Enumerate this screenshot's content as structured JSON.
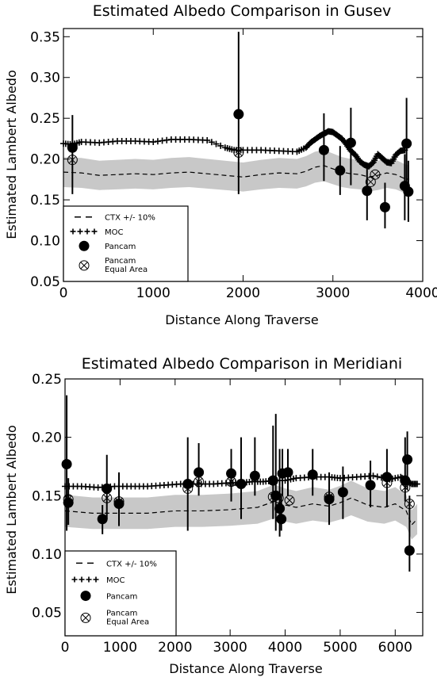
{
  "chart_data": [
    {
      "type": "scatter",
      "title": "Estimated Albedo Comparison in Gusev",
      "xlabel": "Distance Along Traverse",
      "ylabel": "Estimated Lambert Albedo",
      "xlim": [
        0,
        4000
      ],
      "ylim": [
        0.05,
        0.36
      ],
      "xticks": [
        "0",
        "1000",
        "2000",
        "3000",
        "4000"
      ],
      "yticks": [
        "0.05",
        "0.10",
        "0.15",
        "0.20",
        "0.25",
        "0.30",
        "0.35"
      ],
      "legend_position": "bottom-left",
      "legend": {
        "ctx": "CTX +/- 10%",
        "moc": "MOC",
        "pancam": "Pancam",
        "equal1": "Pancam",
        "equal2": "Equal Area"
      },
      "series": [
        {
          "name": "CTX +/- 10%",
          "style": "dashed-with-gray-band",
          "x": [
            0,
            200,
            400,
            600,
            800,
            1000,
            1200,
            1400,
            1600,
            1800,
            2000,
            2200,
            2400,
            2600,
            2700,
            2800,
            2900,
            3000,
            3100,
            3200,
            3300,
            3400,
            3500,
            3600,
            3700,
            3800,
            3850
          ],
          "y": [
            0.184,
            0.183,
            0.18,
            0.181,
            0.182,
            0.181,
            0.183,
            0.184,
            0.182,
            0.18,
            0.178,
            0.181,
            0.183,
            0.182,
            0.185,
            0.19,
            0.192,
            0.188,
            0.184,
            0.182,
            0.181,
            0.178,
            0.18,
            0.183,
            0.181,
            0.176,
            0.175
          ]
        },
        {
          "name": "MOC",
          "style": "plus",
          "x": [
            0,
            100,
            200,
            400,
            600,
            800,
            1000,
            1200,
            1400,
            1600,
            1800,
            1900,
            2000,
            2200,
            2400,
            2600,
            2700,
            2750,
            2800,
            2850,
            2900,
            2950,
            3000,
            3050,
            3100,
            3150,
            3200,
            3250,
            3300,
            3350,
            3400,
            3450,
            3500,
            3550,
            3600,
            3650,
            3700,
            3750,
            3800
          ],
          "y": [
            0.219,
            0.218,
            0.221,
            0.22,
            0.222,
            0.222,
            0.221,
            0.224,
            0.224,
            0.223,
            0.214,
            0.211,
            0.211,
            0.211,
            0.21,
            0.209,
            0.214,
            0.22,
            0.224,
            0.228,
            0.231,
            0.234,
            0.233,
            0.229,
            0.225,
            0.218,
            0.21,
            0.205,
            0.197,
            0.193,
            0.191,
            0.196,
            0.206,
            0.201,
            0.196,
            0.195,
            0.205,
            0.21,
            0.211
          ]
        },
        {
          "name": "Pancam",
          "style": "filled-circle-with-errorbar",
          "x": [
            100,
            1950,
            2900,
            3080,
            3200,
            3380,
            3580,
            3800,
            3820,
            3840
          ],
          "y": [
            0.214,
            0.255,
            0.211,
            0.186,
            0.22,
            0.161,
            0.141,
            0.167,
            0.219,
            0.16
          ],
          "err_low": [
            0.157,
            0.157,
            0.173,
            0.156,
            0.168,
            0.125,
            0.115,
            0.125,
            0.163,
            0.123
          ],
          "err_high": [
            0.254,
            0.356,
            0.256,
            0.216,
            0.263,
            0.191,
            0.171,
            0.206,
            0.275,
            0.198
          ]
        },
        {
          "name": "Pancam Equal Area",
          "style": "circle-x",
          "x": [
            100,
            1950,
            3420,
            3470
          ],
          "y": [
            0.199,
            0.208,
            0.172,
            0.181
          ]
        }
      ]
    },
    {
      "type": "scatter",
      "title": "Estimated Albedo Comparison in Meridiani",
      "xlabel": "Distance Along Traverse",
      "ylabel": "Estimated Lambert Albedo",
      "xlim": [
        0,
        6500
      ],
      "ylim": [
        0.03,
        0.25
      ],
      "xticks": [
        "0",
        "1000",
        "2000",
        "3000",
        "4000",
        "5000",
        "6000"
      ],
      "yticks": [
        "0.05",
        "0.10",
        "0.15",
        "0.20",
        "0.25"
      ],
      "legend_position": "bottom-left",
      "legend": {
        "ctx": "CTX +/- 10%",
        "moc": "MOC",
        "pancam": "Pancam",
        "equal1": "Pancam",
        "equal2": "Equal Area"
      },
      "series": [
        {
          "name": "CTX +/- 10%",
          "style": "dashed-with-gray-band",
          "x": [
            0,
            500,
            1000,
            1500,
            2000,
            2500,
            3000,
            3500,
            3800,
            4000,
            4200,
            4500,
            4800,
            5000,
            5200,
            5500,
            5800,
            6000,
            6100,
            6200,
            6300,
            6400
          ],
          "y": [
            0.137,
            0.135,
            0.135,
            0.135,
            0.137,
            0.137,
            0.138,
            0.14,
            0.145,
            0.142,
            0.14,
            0.143,
            0.141,
            0.144,
            0.148,
            0.142,
            0.14,
            0.143,
            0.14,
            0.137,
            0.125,
            0.13
          ]
        },
        {
          "name": "MOC",
          "style": "plus",
          "x": [
            0,
            300,
            600,
            900,
            1200,
            1500,
            1800,
            2100,
            2400,
            2700,
            3000,
            3200,
            3400,
            3600,
            3800,
            4000,
            4200,
            4500,
            4800,
            5000,
            5300,
            5600,
            5900,
            6100,
            6200,
            6300,
            6400
          ],
          "y": [
            0.158,
            0.158,
            0.157,
            0.158,
            0.158,
            0.158,
            0.159,
            0.16,
            0.16,
            0.16,
            0.161,
            0.161,
            0.162,
            0.162,
            0.163,
            0.163,
            0.165,
            0.166,
            0.166,
            0.165,
            0.166,
            0.167,
            0.164,
            0.166,
            0.163,
            0.16,
            0.16
          ]
        },
        {
          "name": "Pancam",
          "style": "filled-circle-with-errorbar",
          "x": [
            30,
            60,
            680,
            760,
            980,
            2230,
            2430,
            3020,
            3200,
            3450,
            3780,
            3830,
            3900,
            3930,
            3950,
            4050,
            4500,
            4800,
            5050,
            5550,
            5850,
            6180,
            6220,
            6260
          ],
          "y": [
            0.177,
            0.144,
            0.13,
            0.156,
            0.143,
            0.16,
            0.17,
            0.169,
            0.16,
            0.167,
            0.163,
            0.15,
            0.139,
            0.13,
            0.169,
            0.17,
            0.168,
            0.147,
            0.153,
            0.159,
            0.166,
            0.163,
            0.181,
            0.103
          ],
          "err_low": [
            0.12,
            0.125,
            0.117,
            0.13,
            0.124,
            0.12,
            0.15,
            0.145,
            0.13,
            0.15,
            0.13,
            0.12,
            0.115,
            0.12,
            0.15,
            0.15,
            0.15,
            0.125,
            0.13,
            0.14,
            0.14,
            0.145,
            0.155,
            0.085
          ],
          "err_high": [
            0.236,
            0.165,
            0.142,
            0.185,
            0.17,
            0.2,
            0.195,
            0.19,
            0.2,
            0.2,
            0.21,
            0.22,
            0.19,
            0.15,
            0.19,
            0.19,
            0.19,
            0.17,
            0.175,
            0.18,
            0.19,
            0.2,
            0.205,
            0.15
          ]
        },
        {
          "name": "Pancam Equal Area",
          "style": "circle-x",
          "x": [
            60,
            760,
            980,
            2230,
            2430,
            3020,
            3780,
            3880,
            4080,
            4800,
            5850,
            6180,
            6260
          ],
          "y": [
            0.147,
            0.148,
            0.145,
            0.156,
            0.162,
            0.162,
            0.149,
            0.148,
            0.146,
            0.149,
            0.161,
            0.157,
            0.143
          ]
        }
      ]
    }
  ]
}
